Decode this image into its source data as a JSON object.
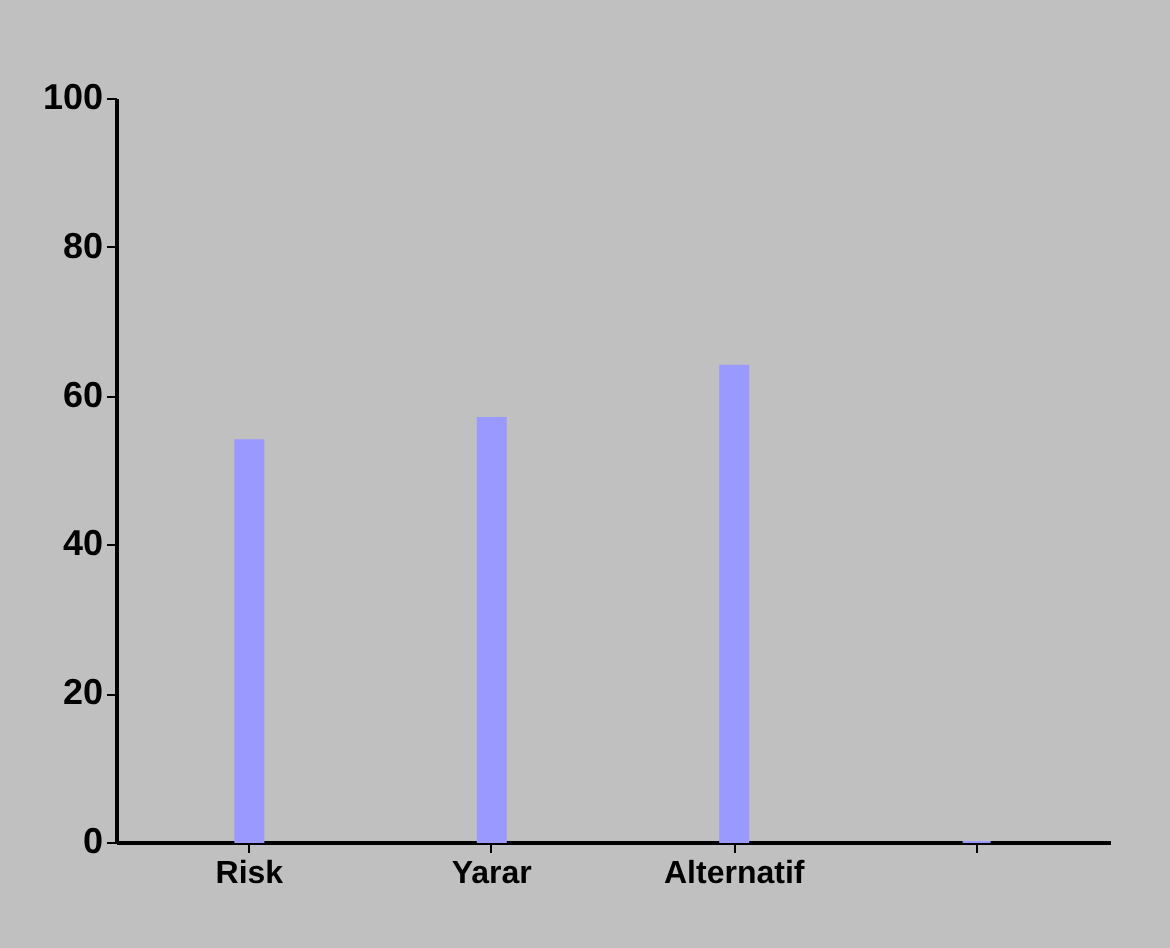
{
  "chart_data": {
    "type": "bar",
    "categories": [
      "Risk",
      "Yarar",
      "Alternatif",
      null
    ],
    "values": [
      54,
      57,
      64,
      0
    ],
    "color": "#9999ff",
    "ylim": [
      0,
      100
    ],
    "yticks": [
      0,
      20,
      40,
      60,
      80,
      100
    ],
    "grid": false
  }
}
